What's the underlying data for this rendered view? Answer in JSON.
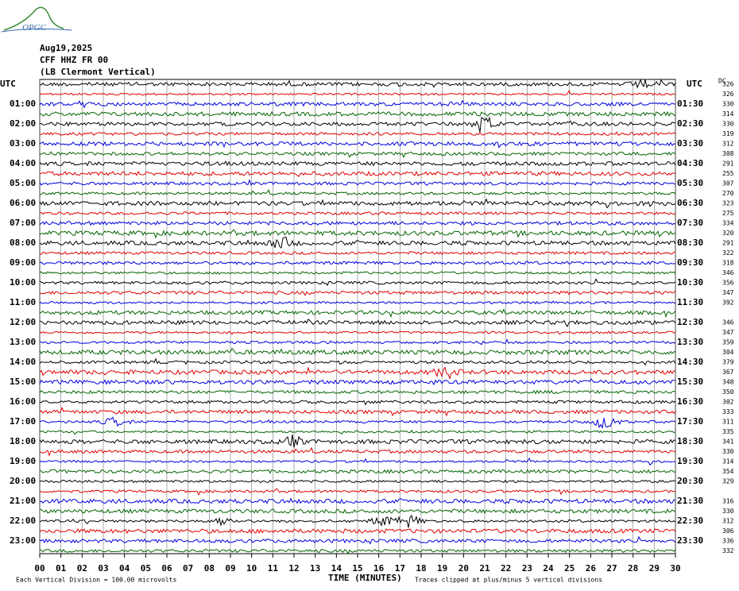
{
  "header": {
    "logo": "OPGC",
    "date": "Aug19,2025",
    "station": "CFF HHZ FR 00",
    "location": "(LB Clermont Vertical)"
  },
  "left_labels": [
    "UTC",
    "01:00",
    "02:00",
    "03:00",
    "04:00",
    "05:00",
    "06:00",
    "07:00",
    "08:00",
    "09:00",
    "10:00",
    "11:00",
    "12:00",
    "13:00",
    "14:00",
    "15:00",
    "16:00",
    "17:00",
    "18:00",
    "19:00",
    "20:00",
    "21:00",
    "22:00",
    "23:00"
  ],
  "right_labels": [
    "UTC",
    "01:30",
    "02:30",
    "03:30",
    "04:30",
    "05:30",
    "06:30",
    "07:30",
    "08:30",
    "09:30",
    "10:30",
    "11:30",
    "12:30",
    "13:30",
    "14:30",
    "15:30",
    "16:30",
    "17:30",
    "18:30",
    "19:30",
    "20:30",
    "21:30",
    "22:30",
    "23:30"
  ],
  "dc_header": "DC",
  "dc_values": [
    326,
    326,
    330,
    314,
    330,
    319,
    312,
    308,
    291,
    255,
    307,
    270,
    323,
    275,
    334,
    320,
    291,
    322,
    318,
    346,
    356,
    347,
    392,
    null,
    346,
    347,
    359,
    304,
    379,
    367,
    348,
    350,
    302,
    333,
    311,
    335,
    341,
    330,
    314,
    354,
    329,
    null,
    316,
    330,
    312,
    306,
    336,
    332
  ],
  "x_ticks": [
    "00",
    "01",
    "02",
    "03",
    "04",
    "05",
    "06",
    "07",
    "08",
    "09",
    "10",
    "11",
    "12",
    "13",
    "14",
    "15",
    "16",
    "17",
    "18",
    "19",
    "20",
    "21",
    "22",
    "23",
    "24",
    "25",
    "26",
    "27",
    "28",
    "29",
    "30"
  ],
  "x_axis_label": "TIME (MINUTES)",
  "footer": {
    "scale": "Each Vertical Division =  100.00 microvolts",
    "clip": "Traces clipped at plus/minus 5 vertical divisions"
  }
}
